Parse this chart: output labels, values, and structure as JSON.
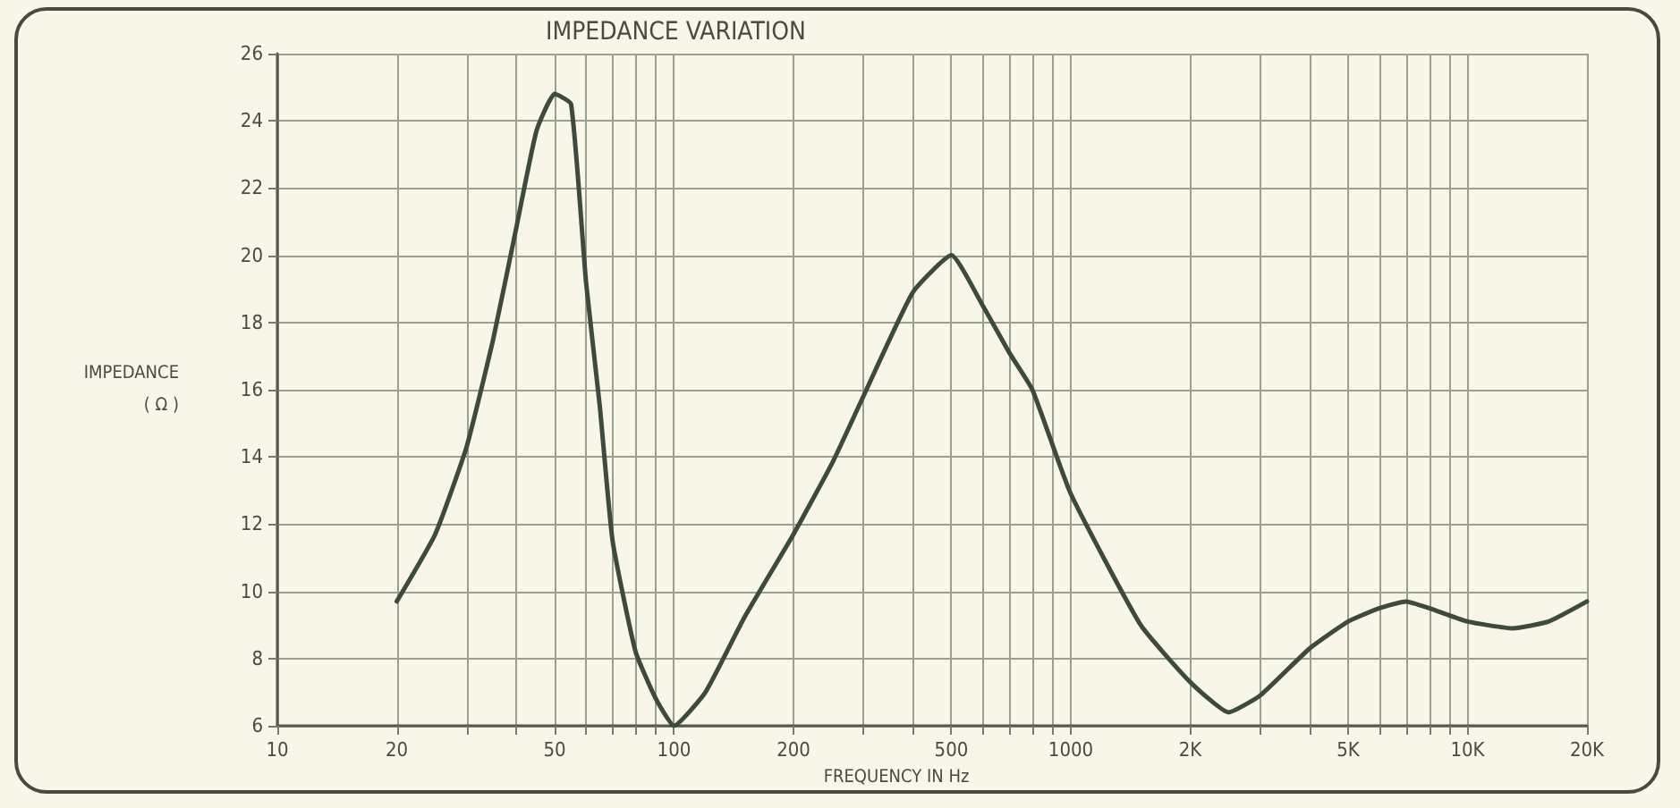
{
  "chart_data": {
    "type": "line",
    "title": "IMPEDANCE VARIATION",
    "xlabel": "FREQUENCY IN Hz",
    "ylabel": "IMPEDANCE\n( Ω )",
    "x": [
      20,
      25,
      30,
      35,
      40,
      45,
      50,
      55,
      60,
      65,
      70,
      80,
      90,
      100,
      120,
      150,
      200,
      250,
      300,
      400,
      500,
      600,
      700,
      800,
      1000,
      1500,
      2000,
      2500,
      3000,
      4000,
      5000,
      6000,
      7000,
      8000,
      10000,
      13000,
      16000,
      20000
    ],
    "series": [
      {
        "color": "#3f4a3f",
        "values": [
          9.7,
          11.7,
          14.3,
          17.5,
          20.8,
          23.7,
          24.8,
          24.5,
          19.2,
          15.5,
          11.5,
          8.2,
          6.8,
          6.0,
          7.0,
          9.2,
          11.7,
          13.8,
          15.8,
          18.9,
          20.0,
          18.5,
          17.1,
          16.0,
          12.9,
          9.0,
          7.3,
          6.4,
          6.9,
          8.3,
          9.1,
          9.5,
          9.7,
          9.5,
          9.1,
          8.9,
          9.1,
          9.7
        ]
      }
    ],
    "log": "x",
    "xlim": [
      10,
      20000
    ],
    "ylim": [
      6,
      26
    ],
    "xticks": [
      10,
      20,
      {
        "value": 30,
        "label": null
      },
      {
        "value": 40,
        "label": null
      },
      50,
      {
        "value": 60,
        "label": null
      },
      {
        "value": 70,
        "label": null
      },
      {
        "value": 80,
        "label": null
      },
      {
        "value": 90,
        "label": null
      },
      100,
      200,
      {
        "value": 300,
        "label": null
      },
      {
        "value": 400,
        "label": null
      },
      500,
      {
        "value": 600,
        "label": null
      },
      {
        "value": 700,
        "label": null
      },
      {
        "value": 800,
        "label": null
      },
      {
        "value": 900,
        "label": null
      },
      1000,
      {
        "value": 2000,
        "label": "2K"
      },
      {
        "value": 3000,
        "label": null
      },
      {
        "value": 4000,
        "label": null
      },
      {
        "value": 5000,
        "label": "5K"
      },
      {
        "value": 6000,
        "label": null
      },
      {
        "value": 7000,
        "label": null
      },
      {
        "value": 8000,
        "label": null
      },
      {
        "value": 9000,
        "label": null
      },
      {
        "value": 10000,
        "label": "10K"
      },
      {
        "value": 20000,
        "label": "20K"
      }
    ],
    "yticks": [
      6,
      8,
      10,
      12,
      14,
      16,
      18,
      20,
      22,
      24,
      26
    ],
    "grid": true,
    "marker": "none",
    "line_style": "solid"
  }
}
